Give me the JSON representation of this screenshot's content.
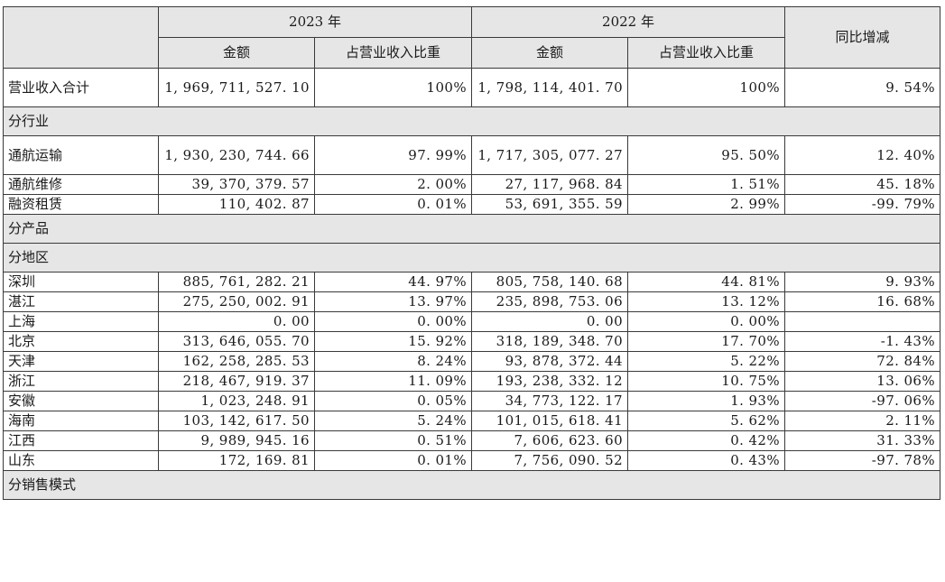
{
  "header": {
    "year_2023": "2023 年",
    "year_2022": "2022 年",
    "yoy_change": "同比增减",
    "amount": "金额",
    "revenue_share": "占营业收入比重"
  },
  "total": {
    "label": "营业收入合计",
    "amount_2023": "1, 969, 711, 527. 10",
    "share_2023": "100%",
    "amount_2022": "1, 798, 114, 401. 70",
    "share_2022": "100%",
    "change": "9. 54%"
  },
  "sections": {
    "by_industry": "分行业",
    "by_product": "分产品",
    "by_region": "分地区",
    "by_sales_mode": "分销售模式"
  },
  "industry_rows": [
    {
      "label": "通航运输",
      "amount_2023": "1, 930, 230, 744. 66",
      "share_2023": "97. 99%",
      "amount_2022": "1, 717, 305, 077. 27",
      "share_2022": "95. 50%",
      "change": "12. 40%"
    },
    {
      "label": "通航维修",
      "amount_2023": "39, 370, 379. 57",
      "share_2023": "2. 00%",
      "amount_2022": "27, 117, 968. 84",
      "share_2022": "1. 51%",
      "change": "45. 18%"
    },
    {
      "label": "融资租赁",
      "amount_2023": "110, 402. 87",
      "share_2023": "0. 01%",
      "amount_2022": "53, 691, 355. 59",
      "share_2022": "2. 99%",
      "change": "-99. 79%"
    }
  ],
  "region_rows": [
    {
      "label": "深圳",
      "amount_2023": "885, 761, 282. 21",
      "share_2023": "44. 97%",
      "amount_2022": "805, 758, 140. 68",
      "share_2022": "44. 81%",
      "change": "9. 93%"
    },
    {
      "label": "湛江",
      "amount_2023": "275, 250, 002. 91",
      "share_2023": "13. 97%",
      "amount_2022": "235, 898, 753. 06",
      "share_2022": "13. 12%",
      "change": "16. 68%"
    },
    {
      "label": "上海",
      "amount_2023": "0. 00",
      "share_2023": "0. 00%",
      "amount_2022": "0. 00",
      "share_2022": "0. 00%",
      "change": ""
    },
    {
      "label": "北京",
      "amount_2023": "313, 646, 055. 70",
      "share_2023": "15. 92%",
      "amount_2022": "318, 189, 348. 70",
      "share_2022": "17. 70%",
      "change": "-1. 43%"
    },
    {
      "label": "天津",
      "amount_2023": "162, 258, 285. 53",
      "share_2023": "8. 24%",
      "amount_2022": "93, 878, 372. 44",
      "share_2022": "5. 22%",
      "change": "72. 84%"
    },
    {
      "label": "浙江",
      "amount_2023": "218, 467, 919. 37",
      "share_2023": "11. 09%",
      "amount_2022": "193, 238, 332. 12",
      "share_2022": "10. 75%",
      "change": "13. 06%"
    },
    {
      "label": "安徽",
      "amount_2023": "1, 023, 248. 91",
      "share_2023": "0. 05%",
      "amount_2022": "34, 773, 122. 17",
      "share_2022": "1. 93%",
      "change": "-97. 06%"
    },
    {
      "label": "海南",
      "amount_2023": "103, 142, 617. 50",
      "share_2023": "5. 24%",
      "amount_2022": "101, 015, 618. 41",
      "share_2022": "5. 62%",
      "change": "2. 11%"
    },
    {
      "label": "江西",
      "amount_2023": "9, 989, 945. 16",
      "share_2023": "0. 51%",
      "amount_2022": "7, 606, 623. 60",
      "share_2022": "0. 42%",
      "change": "31. 33%"
    },
    {
      "label": "山东",
      "amount_2023": "172, 169. 81",
      "share_2023": "0. 01%",
      "amount_2022": "7, 756, 090. 52",
      "share_2022": "0. 43%",
      "change": "-97. 78%"
    }
  ]
}
